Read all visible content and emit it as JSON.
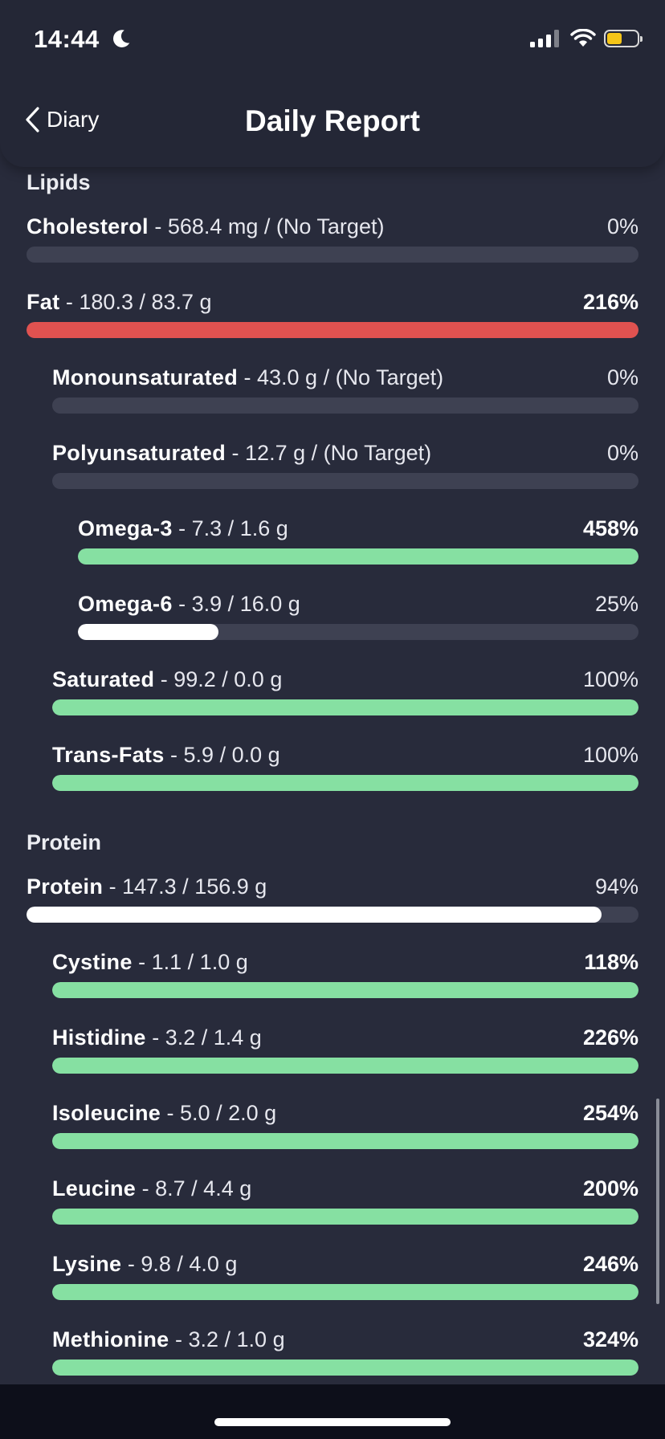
{
  "status_bar": {
    "time": "14:44"
  },
  "nav": {
    "back_label": "Diary",
    "title": "Daily Report"
  },
  "colors": {
    "over": "#e05250",
    "good": "#86e0a2",
    "partial": "#ffffff",
    "track": "#3e4152"
  },
  "sections": [
    {
      "title": "Lipids",
      "rows": [
        {
          "name": "Cholesterol",
          "detail": " - 568.4 mg / (No Target)",
          "pct": "0%",
          "fill": 0,
          "status": "none"
        },
        {
          "name": "Fat",
          "detail": " - 180.3 / 83.7 g",
          "pct": "216%",
          "fill": 1,
          "status": "over"
        },
        {
          "name": "Monounsaturated",
          "detail": " - 43.0 g / (No Target)",
          "pct": "0%",
          "fill": 0,
          "status": "none"
        },
        {
          "name": "Polyunsaturated",
          "detail": " - 12.7 g / (No Target)",
          "pct": "0%",
          "fill": 0,
          "status": "none"
        },
        {
          "name": "Omega-3",
          "detail": " - 7.3 / 1.6 g",
          "pct": "458%",
          "fill": 1,
          "status": "good"
        },
        {
          "name": "Omega-6",
          "detail": " - 3.9 / 16.0 g",
          "pct": "25%",
          "fill": 0.25,
          "status": "partial"
        },
        {
          "name": "Saturated",
          "detail": " - 99.2 / 0.0 g",
          "pct": "100%",
          "fill": 1,
          "status": "good"
        },
        {
          "name": "Trans-Fats",
          "detail": " - 5.9 / 0.0 g",
          "pct": "100%",
          "fill": 1,
          "status": "good"
        }
      ]
    },
    {
      "title": "Protein",
      "rows": [
        {
          "name": "Protein",
          "detail": " - 147.3 / 156.9 g",
          "pct": "94%",
          "fill": 0.94,
          "status": "partial"
        },
        {
          "name": "Cystine",
          "detail": " - 1.1 / 1.0 g",
          "pct": "118%",
          "fill": 1,
          "status": "good"
        },
        {
          "name": "Histidine",
          "detail": " - 3.2 / 1.4 g",
          "pct": "226%",
          "fill": 1,
          "status": "good"
        },
        {
          "name": "Isoleucine",
          "detail": " - 5.0 / 2.0 g",
          "pct": "254%",
          "fill": 1,
          "status": "good"
        },
        {
          "name": "Leucine",
          "detail": " - 8.7 / 4.4 g",
          "pct": "200%",
          "fill": 1,
          "status": "good"
        },
        {
          "name": "Lysine",
          "detail": " - 9.8 / 4.0 g",
          "pct": "246%",
          "fill": 1,
          "status": "good"
        },
        {
          "name": "Methionine",
          "detail": " - 3.2 / 1.0 g",
          "pct": "324%",
          "fill": 1,
          "status": "good"
        }
      ]
    }
  ]
}
